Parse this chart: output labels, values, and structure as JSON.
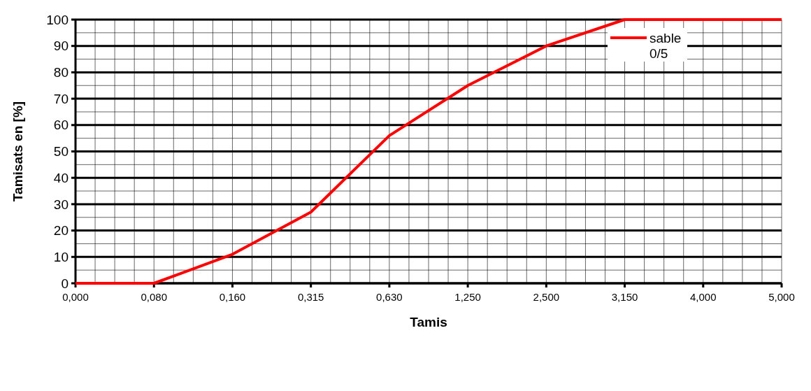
{
  "chart_data": {
    "type": "line",
    "xlabel": "Tamis",
    "ylabel": "Tamisats en [%]",
    "categories": [
      "0,000",
      "0,080",
      "0,160",
      "0,315",
      "0,630",
      "1,250",
      "2,500",
      "3,150",
      "4,000",
      "5,000"
    ],
    "series": [
      {
        "name": "sable 0/5",
        "color": "#ff0000",
        "values": [
          0,
          0,
          11,
          27,
          56,
          75,
          90,
          100,
          100,
          100
        ]
      }
    ],
    "ylim": [
      0,
      100
    ],
    "yticks": [
      0,
      10,
      20,
      30,
      40,
      50,
      60,
      70,
      80,
      90,
      100
    ],
    "grid": true,
    "legend": "top right",
    "marker": "none",
    "line_style": "solid"
  }
}
